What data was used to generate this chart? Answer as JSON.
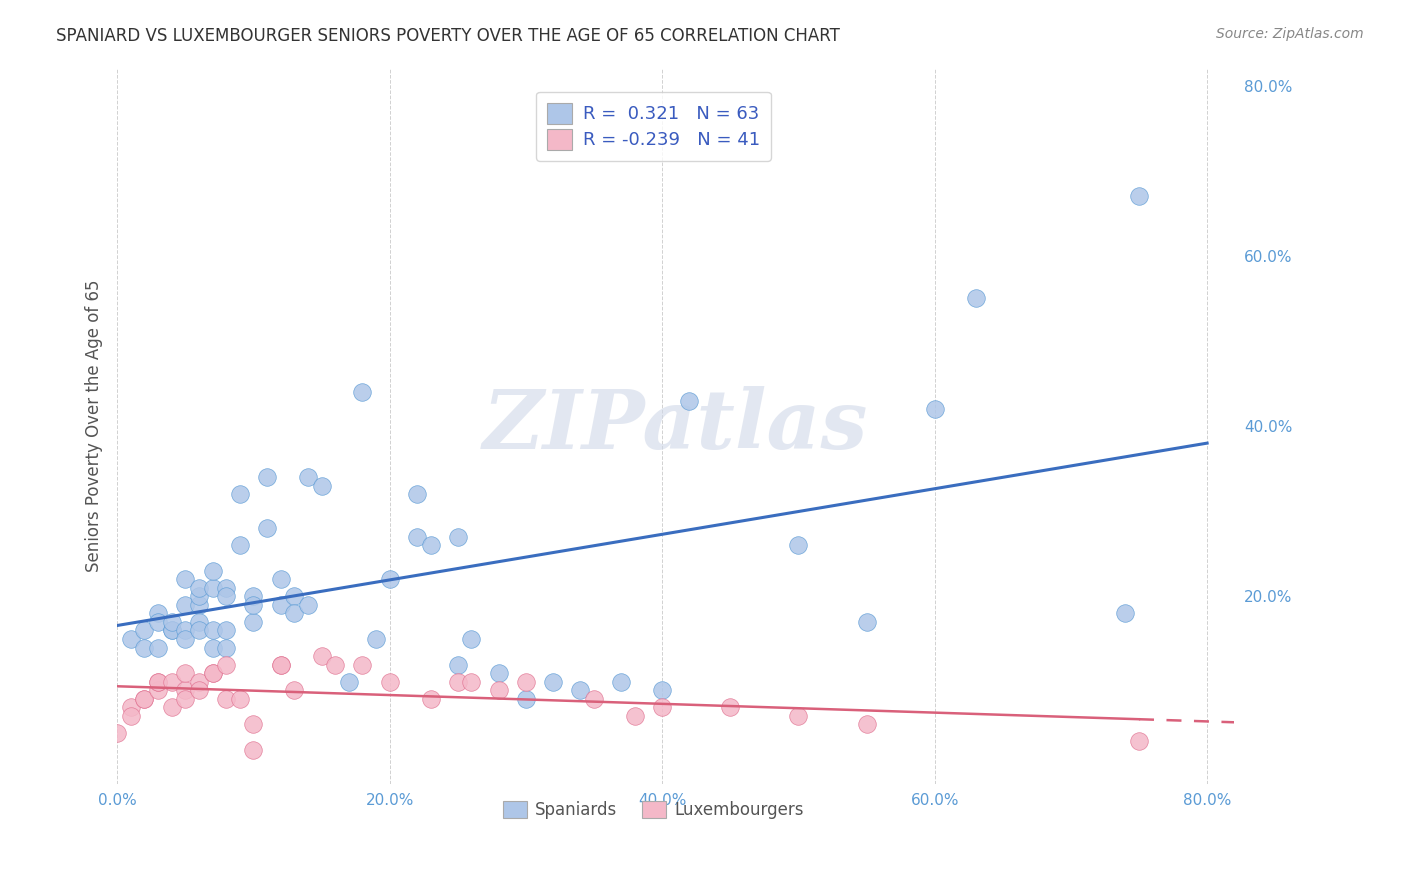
{
  "title": "SPANIARD VS LUXEMBOURGER SENIORS POVERTY OVER THE AGE OF 65 CORRELATION CHART",
  "source": "Source: ZipAtlas.com",
  "ylabel": "Seniors Poverty Over the Age of 65",
  "watermark": "ZIPatlas",
  "spaniards_R": 0.321,
  "spaniards_N": 63,
  "luxembourgers_R": -0.239,
  "luxembourgers_N": 41,
  "xlim": [
    0.0,
    0.82
  ],
  "ylim": [
    -0.02,
    0.82
  ],
  "xticks": [
    0.0,
    0.2,
    0.4,
    0.6,
    0.8
  ],
  "yticks": [
    0.2,
    0.4,
    0.6,
    0.8
  ],
  "spaniards_color": "#aec6e8",
  "spaniards_edge": "#5b9bd5",
  "luxembourgers_color": "#f4b8c8",
  "luxembourgers_edge": "#e07090",
  "trendline_spaniards_color": "#3a6dbf",
  "trendline_luxembourgers_color": "#d9607a",
  "background_color": "#ffffff",
  "grid_color": "#cccccc",
  "spaniards_x": [
    0.01,
    0.02,
    0.02,
    0.03,
    0.03,
    0.03,
    0.04,
    0.04,
    0.04,
    0.05,
    0.05,
    0.05,
    0.05,
    0.06,
    0.06,
    0.06,
    0.06,
    0.06,
    0.07,
    0.07,
    0.07,
    0.07,
    0.08,
    0.08,
    0.08,
    0.08,
    0.09,
    0.09,
    0.1,
    0.1,
    0.1,
    0.11,
    0.11,
    0.12,
    0.12,
    0.13,
    0.13,
    0.14,
    0.14,
    0.15,
    0.17,
    0.18,
    0.19,
    0.2,
    0.22,
    0.22,
    0.23,
    0.25,
    0.25,
    0.26,
    0.28,
    0.3,
    0.32,
    0.34,
    0.37,
    0.4,
    0.42,
    0.5,
    0.55,
    0.6,
    0.63,
    0.74,
    0.75
  ],
  "spaniards_y": [
    0.15,
    0.14,
    0.16,
    0.18,
    0.14,
    0.17,
    0.16,
    0.16,
    0.17,
    0.19,
    0.16,
    0.15,
    0.22,
    0.19,
    0.17,
    0.16,
    0.2,
    0.21,
    0.14,
    0.16,
    0.21,
    0.23,
    0.21,
    0.2,
    0.14,
    0.16,
    0.26,
    0.32,
    0.2,
    0.17,
    0.19,
    0.34,
    0.28,
    0.22,
    0.19,
    0.2,
    0.18,
    0.34,
    0.19,
    0.33,
    0.1,
    0.44,
    0.15,
    0.22,
    0.27,
    0.32,
    0.26,
    0.27,
    0.12,
    0.15,
    0.11,
    0.08,
    0.1,
    0.09,
    0.1,
    0.09,
    0.43,
    0.26,
    0.17,
    0.42,
    0.55,
    0.18,
    0.67
  ],
  "luxembourgers_x": [
    0.0,
    0.01,
    0.01,
    0.02,
    0.02,
    0.03,
    0.03,
    0.03,
    0.04,
    0.04,
    0.05,
    0.05,
    0.05,
    0.06,
    0.06,
    0.07,
    0.07,
    0.08,
    0.08,
    0.09,
    0.1,
    0.1,
    0.12,
    0.12,
    0.13,
    0.15,
    0.16,
    0.18,
    0.2,
    0.23,
    0.25,
    0.26,
    0.28,
    0.3,
    0.35,
    0.38,
    0.4,
    0.45,
    0.5,
    0.55,
    0.75
  ],
  "luxembourgers_y": [
    0.04,
    0.07,
    0.06,
    0.08,
    0.08,
    0.09,
    0.1,
    0.1,
    0.1,
    0.07,
    0.09,
    0.08,
    0.11,
    0.1,
    0.09,
    0.11,
    0.11,
    0.08,
    0.12,
    0.08,
    0.05,
    0.02,
    0.12,
    0.12,
    0.09,
    0.13,
    0.12,
    0.12,
    0.1,
    0.08,
    0.1,
    0.1,
    0.09,
    0.1,
    0.08,
    0.06,
    0.07,
    0.07,
    0.06,
    0.05,
    0.03
  ]
}
